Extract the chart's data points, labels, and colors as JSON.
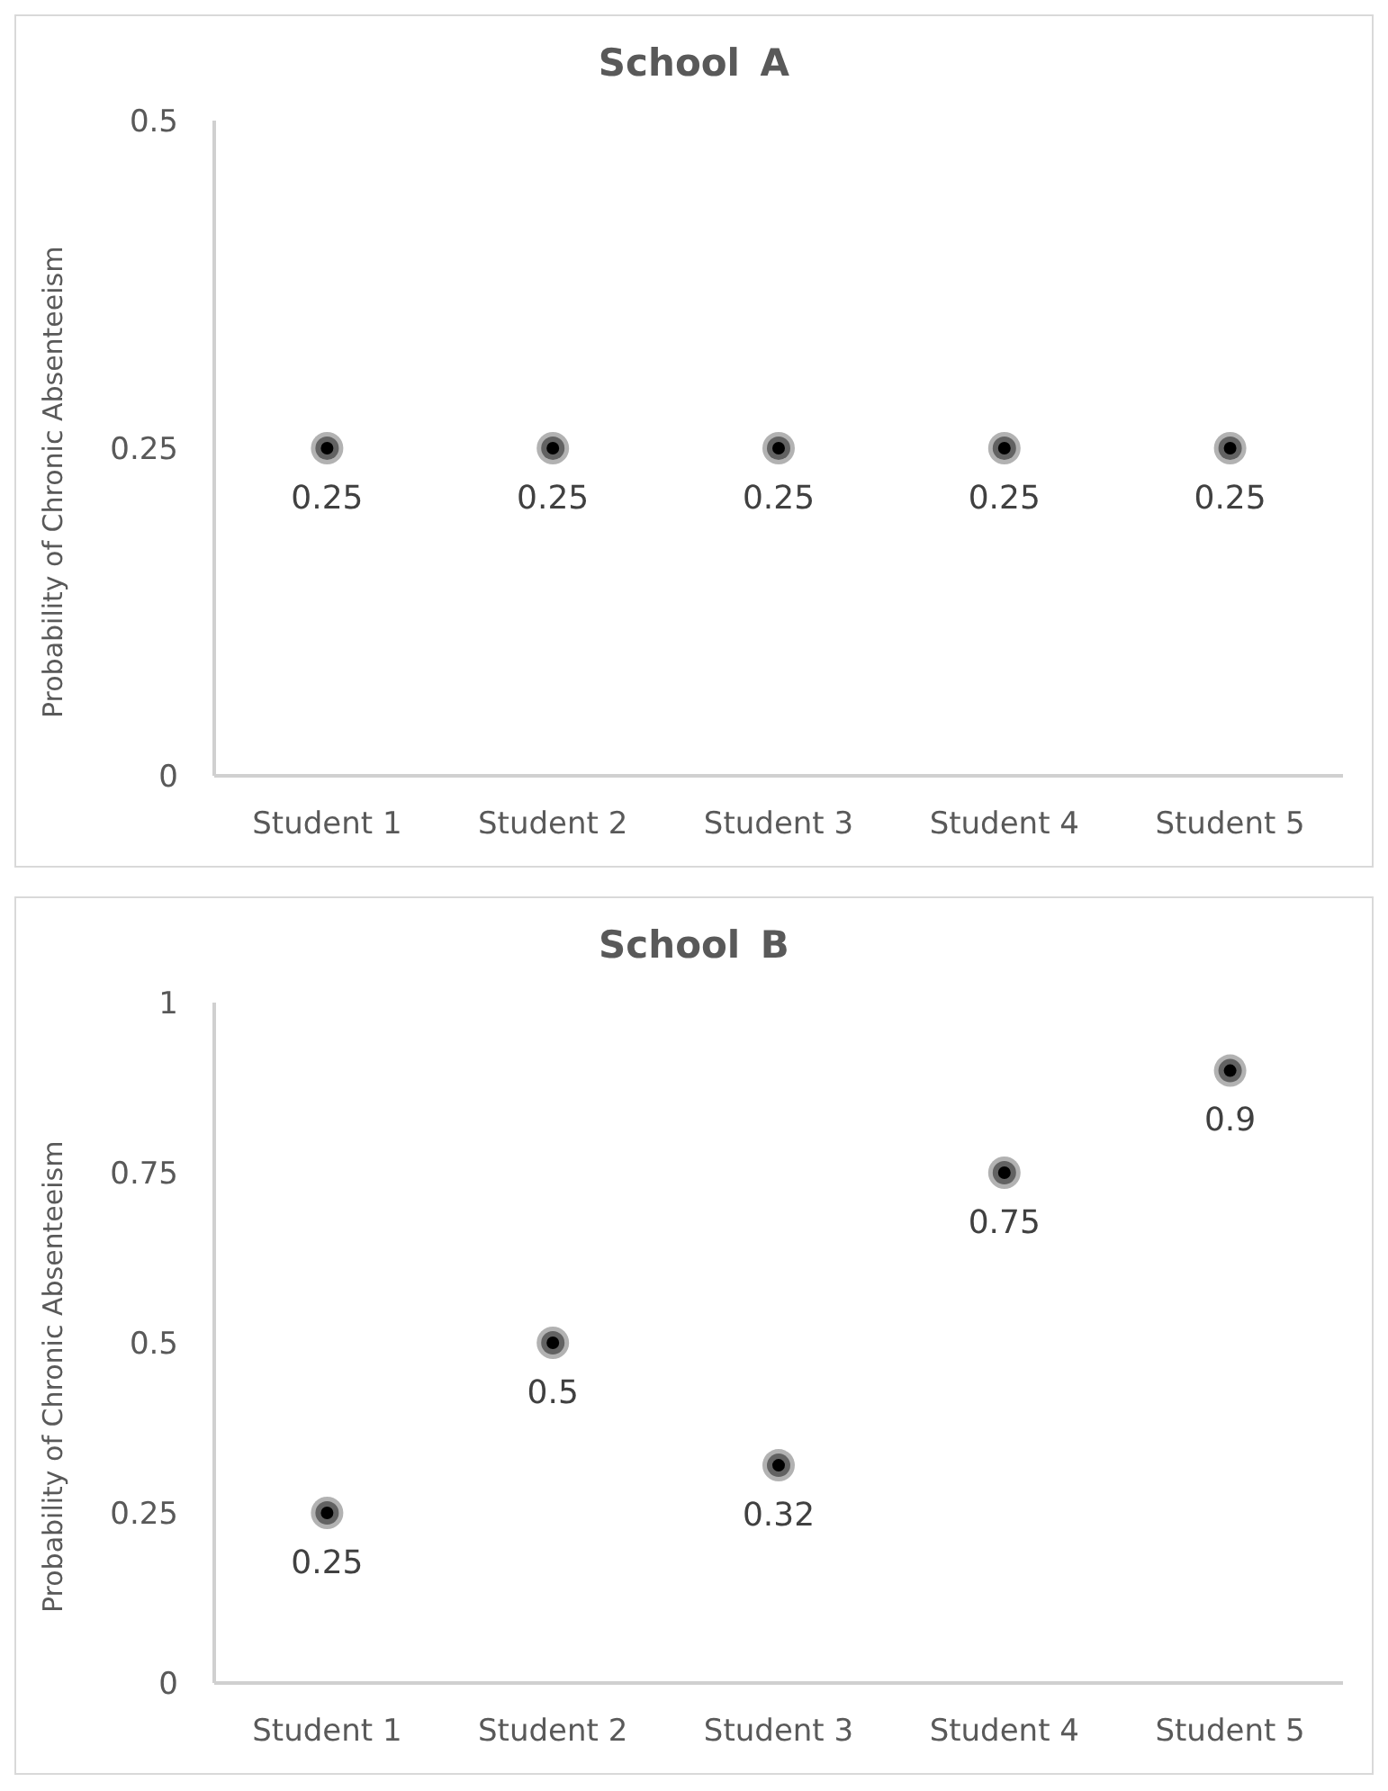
{
  "chart_data": [
    {
      "type": "scatter",
      "title": "School A",
      "ylabel": "Probability of Chronic Absenteeism",
      "categories": [
        "Student 1",
        "Student 2",
        "Student 3",
        "Student 4",
        "Student 5"
      ],
      "series": [
        {
          "color": "#000000",
          "values": [
            0.25,
            0.25,
            0.25,
            0.25,
            0.25
          ]
        }
      ],
      "ylim": [
        0,
        0.5
      ],
      "yticks": [
        0,
        0.25,
        0.5
      ],
      "grid": false,
      "legend": false,
      "marker": "circle",
      "data_labels": true
    },
    {
      "type": "scatter",
      "title": "School B",
      "ylabel": "Probability of Chronic Absenteeism",
      "categories": [
        "Student 1",
        "Student 2",
        "Student 3",
        "Student 4",
        "Student 5"
      ],
      "series": [
        {
          "color": "#000000",
          "values": [
            0.25,
            0.5,
            0.32,
            0.75,
            0.9
          ]
        }
      ],
      "ylim": [
        0,
        1
      ],
      "yticks": [
        0,
        0.25,
        0.5,
        0.75,
        1
      ],
      "grid": false,
      "legend": false,
      "marker": "circle",
      "data_labels": true
    }
  ]
}
